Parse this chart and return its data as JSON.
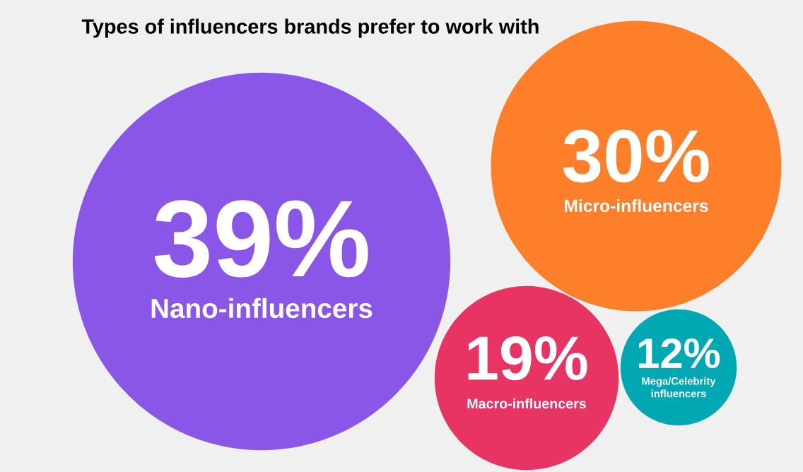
{
  "chart_data": {
    "type": "other",
    "title": "Types of influencers brands prefer to work with",
    "categories": [
      "Nano-influencers",
      "Micro-influencers",
      "Macro-influencers",
      "Mega/Celebrity influencers"
    ],
    "values": [
      39,
      30,
      19,
      12
    ],
    "value_labels": [
      "39%",
      "30%",
      "19%",
      "12%"
    ],
    "colors": [
      "#8a56e8",
      "#fe7f2a",
      "#e73462",
      "#00a8b3"
    ]
  }
}
